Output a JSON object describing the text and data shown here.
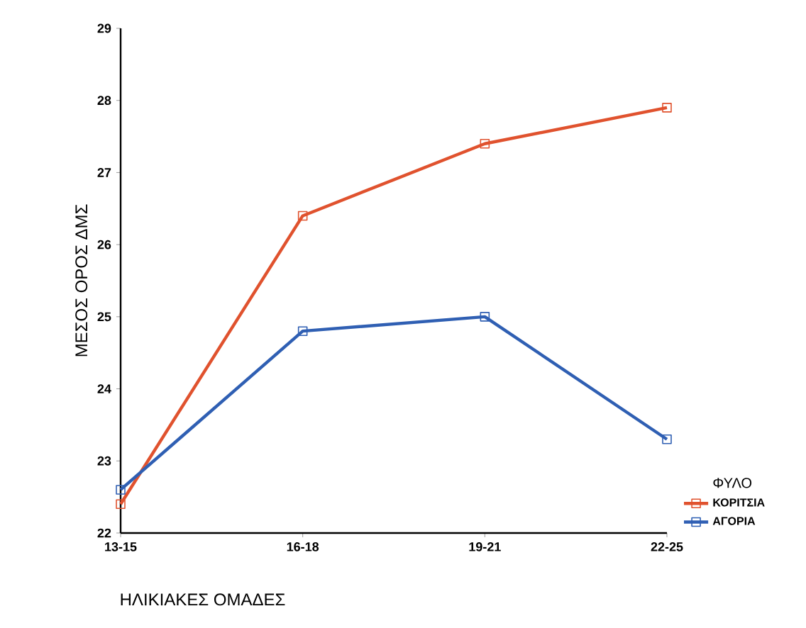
{
  "chart_data": {
    "type": "line",
    "xlabel": "ΗΛΙΚΙΑΚΕΣ ΟΜΑΔΕΣ",
    "ylabel": "ΜΕΣΟΣ ΟΡΟΣ ΔΜΣ",
    "legend_title": "ΦΥΛΟ",
    "categories": [
      "13-15",
      "16-18",
      "19-21",
      "22-25"
    ],
    "series": [
      {
        "name": "ΚΟΡΙΤΣΙΑ",
        "color": "#e0522e",
        "values": [
          22.4,
          26.4,
          27.4,
          27.9
        ]
      },
      {
        "name": "ΑΓΟΡΙΑ",
        "color": "#2f5fb3",
        "values": [
          22.6,
          24.8,
          25.0,
          23.3
        ]
      }
    ],
    "ylim": [
      22,
      29
    ],
    "yticks": [
      22,
      23,
      24,
      25,
      26,
      27,
      28,
      29
    ],
    "marker": "square",
    "legend": "right",
    "grid": false
  }
}
